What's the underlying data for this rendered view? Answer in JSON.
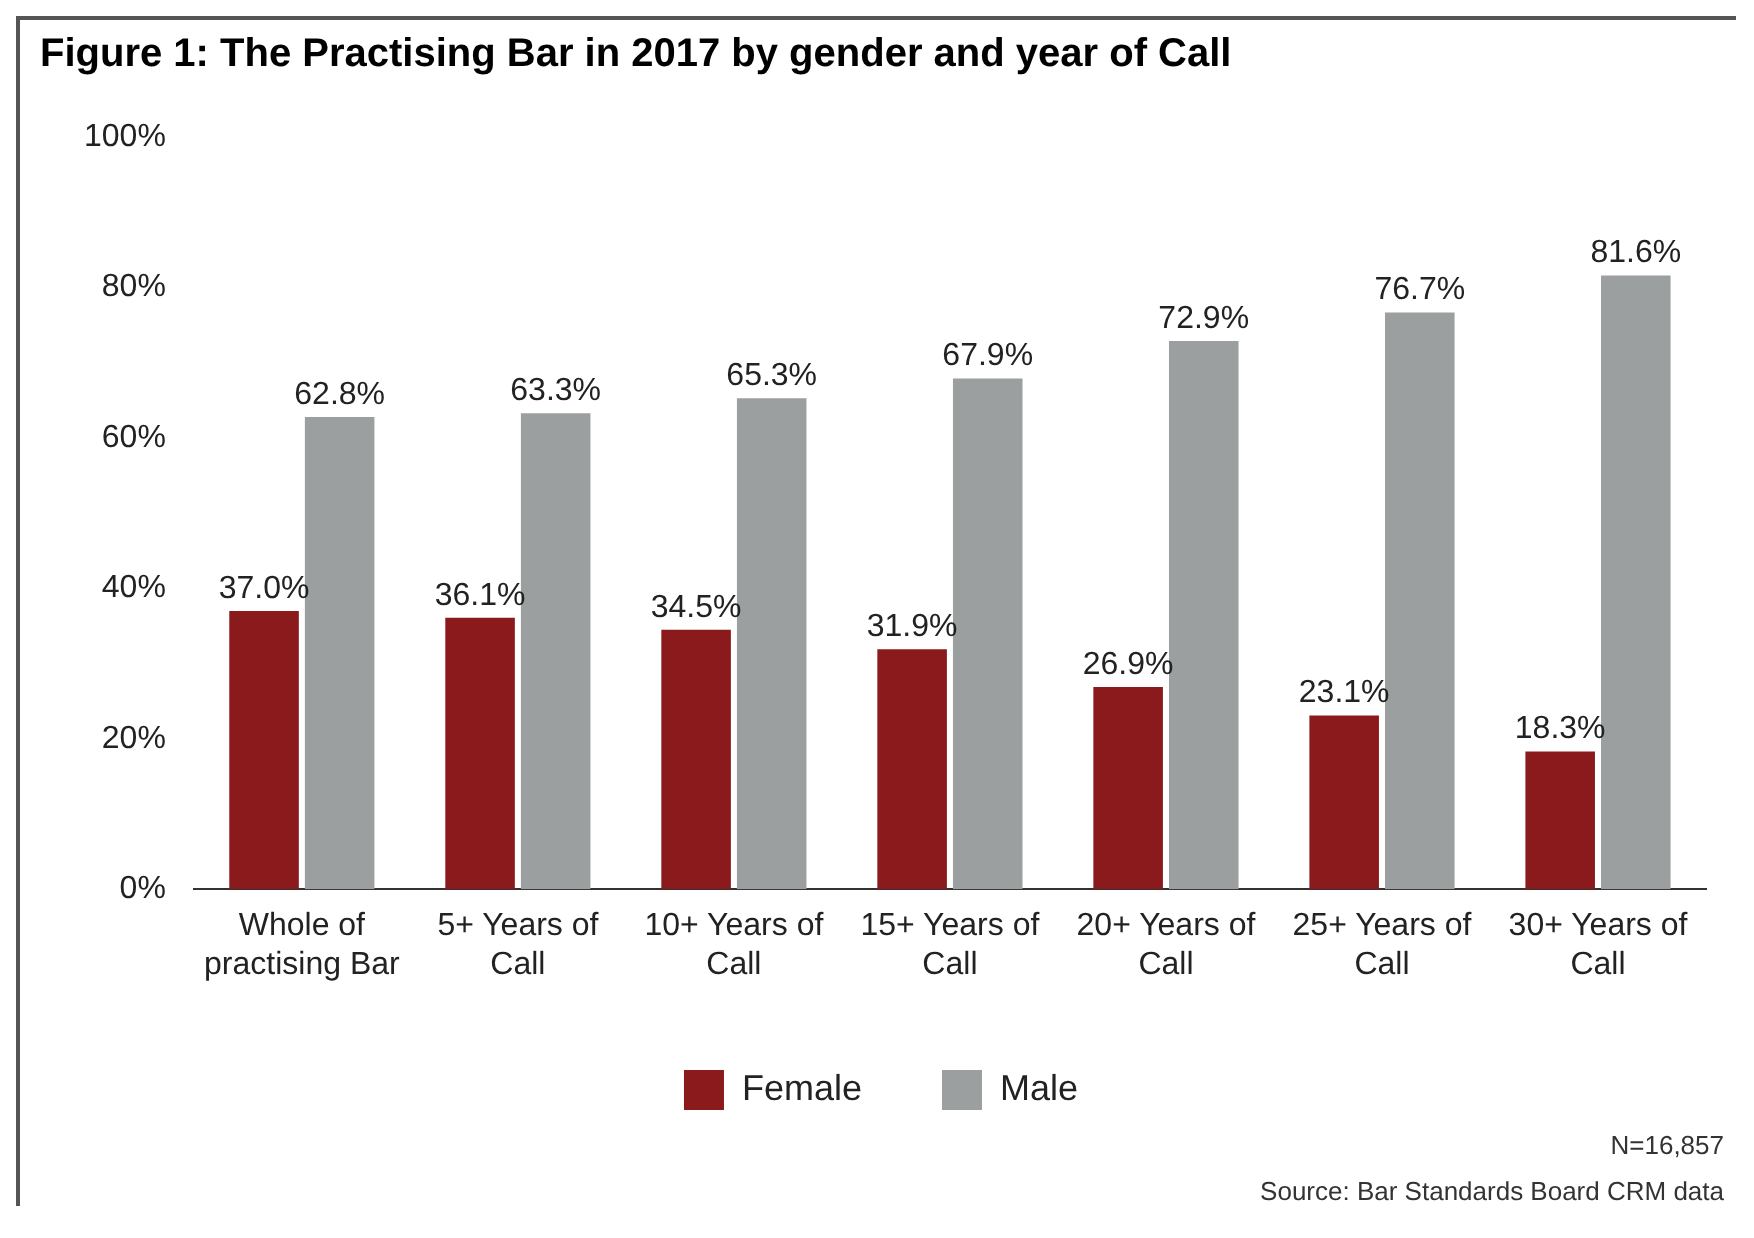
{
  "chart_data": {
    "type": "bar",
    "title": "Figure 1: The Practising Bar in 2017 by gender and year of Call",
    "categories": [
      "Whole of practising Bar",
      "5+ Years of Call",
      "10+ Years of Call",
      "15+ Years of Call",
      "20+ Years of Call",
      "25+ Years of Call",
      "30+ Years of Call"
    ],
    "series": [
      {
        "name": "Female",
        "color": "#8b1a1c",
        "values": [
          37.0,
          36.1,
          34.5,
          31.9,
          26.9,
          23.1,
          18.3
        ]
      },
      {
        "name": "Male",
        "color": "#9b9f9f",
        "values": [
          62.8,
          63.3,
          65.3,
          67.9,
          72.9,
          76.7,
          81.6
        ]
      }
    ],
    "ylim": [
      0,
      100
    ],
    "yticks": [
      {
        "value": 0,
        "label": "0%"
      },
      {
        "value": 20,
        "label": "20%"
      },
      {
        "value": 40,
        "label": "40%"
      },
      {
        "value": 60,
        "label": "60%"
      },
      {
        "value": 80,
        "label": "80%"
      },
      {
        "value": 100,
        "label": "100%"
      }
    ],
    "value_labels": [
      [
        "37.0%",
        "36.1%",
        "34.5%",
        "31.9%",
        "26.9%",
        "23.1%",
        "18.3%"
      ],
      [
        "62.8%",
        "63.3%",
        "65.3%",
        "67.9%",
        "72.9%",
        "76.7%",
        "81.6%"
      ]
    ],
    "grid": false,
    "legend": "bottom",
    "annotations": [
      "N=16,857",
      "Source: Bar Standards Board CRM data"
    ]
  }
}
